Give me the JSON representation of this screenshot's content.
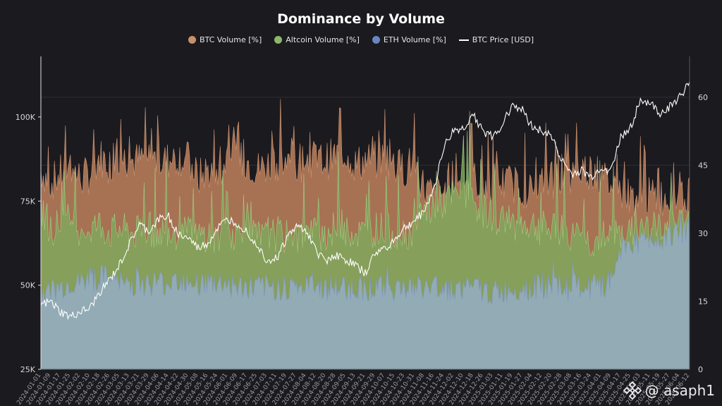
{
  "title": "Dominance by Volume",
  "legend": [
    {
      "label": "BTC Volume [%]",
      "color": "#c8906a",
      "kind": "dot"
    },
    {
      "label": "Altcoin Volume [%]",
      "color": "#8db86a",
      "kind": "dot"
    },
    {
      "label": "ETH Volume [%]",
      "color": "#6a86c0",
      "kind": "dot"
    },
    {
      "label": "BTC Price [USD]",
      "color": "#ffffff",
      "kind": "line"
    }
  ],
  "watermark": "@ asaph1",
  "chart_data": {
    "type": "area",
    "title": "Dominance by Volume",
    "x_start": "2024-01-01",
    "x_end": "2025-06-14",
    "x_tick_labels": [
      "2024-01-01",
      "2024-01-09",
      "2024-01-17",
      "2024-01-25",
      "2024-02-02",
      "2024-02-10",
      "2024-02-18",
      "2024-02-26",
      "2024-03-05",
      "2024-03-13",
      "2024-03-21",
      "2024-03-29",
      "2024-04-06",
      "2024-04-14",
      "2024-04-22",
      "2024-04-30",
      "2024-05-08",
      "2024-05-16",
      "2024-05-24",
      "2024-06-01",
      "2024-06-09",
      "2024-06-17",
      "2024-06-25",
      "2024-07-03",
      "2024-07-11",
      "2024-07-19",
      "2024-07-27",
      "2024-08-04",
      "2024-08-12",
      "2024-08-20",
      "2024-08-28",
      "2024-09-05",
      "2024-09-13",
      "2024-09-21",
      "2024-09-29",
      "2024-10-07",
      "2024-10-15",
      "2024-10-23",
      "2024-10-31",
      "2024-11-08",
      "2024-11-16",
      "2024-11-24",
      "2024-12-02",
      "2024-12-10",
      "2024-12-18",
      "2024-12-26",
      "2025-01-03",
      "2025-01-11",
      "2025-01-19",
      "2025-01-27",
      "2025-02-04",
      "2025-02-12",
      "2025-02-20",
      "2025-02-28",
      "2025-03-08",
      "2025-03-16",
      "2025-03-24",
      "2025-04-01",
      "2025-04-09",
      "2025-04-17",
      "2025-04-25",
      "2025-05-03",
      "2025-05-11",
      "2025-05-19",
      "2025-05-27",
      "2025-06-04",
      "2025-06-12"
    ],
    "left_axis": {
      "ticks": [
        25000,
        50000,
        75000,
        100000
      ],
      "tick_labels": [
        "25K",
        "50K",
        "75K",
        "100K"
      ],
      "range": [
        25000,
        118000
      ]
    },
    "right_axis": {
      "ticks": [
        0,
        15,
        30,
        45,
        60
      ],
      "tick_labels": [
        "0",
        "15",
        "30",
        "45",
        "60"
      ],
      "range": [
        0,
        69
      ]
    },
    "grid": true,
    "legend_position": "top-center",
    "series": [
      {
        "name": "BTC Volume [%]",
        "axis": "right",
        "color": "#c8906a",
        "anchors": [
          [
            0,
            44
          ],
          [
            8,
            41
          ],
          [
            16,
            43
          ],
          [
            24,
            45
          ],
          [
            32,
            42
          ],
          [
            40,
            43
          ],
          [
            48,
            47
          ],
          [
            56,
            45
          ],
          [
            64,
            47
          ],
          [
            72,
            46
          ],
          [
            80,
            46
          ],
          [
            88,
            47
          ],
          [
            96,
            46
          ],
          [
            104,
            46
          ],
          [
            112,
            47
          ],
          [
            120,
            46
          ],
          [
            128,
            42
          ],
          [
            136,
            44
          ],
          [
            144,
            42
          ],
          [
            152,
            47
          ],
          [
            160,
            46
          ],
          [
            168,
            46
          ],
          [
            176,
            44
          ],
          [
            184,
            45
          ],
          [
            192,
            46
          ],
          [
            200,
            45
          ],
          [
            208,
            44
          ],
          [
            216,
            47
          ],
          [
            224,
            46
          ],
          [
            232,
            46
          ],
          [
            240,
            47
          ],
          [
            248,
            48
          ],
          [
            256,
            45
          ],
          [
            264,
            46
          ],
          [
            272,
            46
          ],
          [
            280,
            47
          ],
          [
            288,
            45
          ],
          [
            296,
            44
          ],
          [
            304,
            46
          ],
          [
            312,
            40
          ],
          [
            320,
            38
          ],
          [
            328,
            39
          ],
          [
            336,
            40
          ],
          [
            344,
            42
          ],
          [
            352,
            42
          ],
          [
            360,
            40
          ],
          [
            368,
            41
          ],
          [
            376,
            41
          ],
          [
            384,
            41
          ],
          [
            392,
            40
          ],
          [
            400,
            39
          ],
          [
            408,
            41
          ],
          [
            416,
            42
          ],
          [
            424,
            42
          ],
          [
            432,
            42
          ],
          [
            440,
            44
          ],
          [
            448,
            44
          ],
          [
            456,
            42
          ],
          [
            464,
            41
          ],
          [
            472,
            39
          ],
          [
            480,
            38
          ],
          [
            488,
            38
          ],
          [
            496,
            38
          ],
          [
            504,
            38
          ],
          [
            512,
            38
          ],
          [
            520,
            38
          ],
          [
            528,
            38
          ]
        ]
      },
      {
        "name": "Altcoin Volume [%]",
        "axis": "right",
        "color": "#8db86a",
        "anchors": [
          [
            0,
            36
          ],
          [
            8,
            31
          ],
          [
            16,
            32
          ],
          [
            24,
            33
          ],
          [
            32,
            31
          ],
          [
            40,
            31
          ],
          [
            48,
            32
          ],
          [
            56,
            30
          ],
          [
            64,
            31
          ],
          [
            72,
            30
          ],
          [
            80,
            30
          ],
          [
            88,
            31
          ],
          [
            96,
            30
          ],
          [
            104,
            31
          ],
          [
            112,
            30
          ],
          [
            120,
            30
          ],
          [
            128,
            29
          ],
          [
            136,
            30
          ],
          [
            144,
            29
          ],
          [
            152,
            30
          ],
          [
            160,
            30
          ],
          [
            168,
            30
          ],
          [
            176,
            29
          ],
          [
            184,
            29
          ],
          [
            192,
            30
          ],
          [
            200,
            29
          ],
          [
            208,
            29
          ],
          [
            216,
            30
          ],
          [
            224,
            30
          ],
          [
            232,
            30
          ],
          [
            240,
            31
          ],
          [
            248,
            31
          ],
          [
            256,
            30
          ],
          [
            264,
            30
          ],
          [
            272,
            31
          ],
          [
            280,
            31
          ],
          [
            288,
            30
          ],
          [
            296,
            30
          ],
          [
            304,
            31
          ],
          [
            312,
            34
          ],
          [
            320,
            36
          ],
          [
            328,
            37
          ],
          [
            336,
            38
          ],
          [
            344,
            39
          ],
          [
            352,
            37
          ],
          [
            360,
            35
          ],
          [
            368,
            34
          ],
          [
            376,
            33
          ],
          [
            384,
            32
          ],
          [
            392,
            32
          ],
          [
            400,
            32
          ],
          [
            408,
            31
          ],
          [
            416,
            31
          ],
          [
            424,
            30
          ],
          [
            432,
            29
          ],
          [
            440,
            29
          ],
          [
            448,
            28
          ],
          [
            456,
            29
          ],
          [
            464,
            29
          ],
          [
            472,
            30
          ],
          [
            480,
            30
          ],
          [
            488,
            31
          ],
          [
            496,
            31
          ],
          [
            504,
            31
          ],
          [
            512,
            32
          ],
          [
            520,
            32
          ],
          [
            528,
            32
          ]
        ]
      },
      {
        "name": "ETH Volume [%]",
        "axis": "right",
        "color": "#6a86c0",
        "anchors": [
          [
            0,
            17
          ],
          [
            8,
            17
          ],
          [
            16,
            18
          ],
          [
            24,
            19
          ],
          [
            32,
            19
          ],
          [
            40,
            20
          ],
          [
            48,
            20
          ],
          [
            56,
            20
          ],
          [
            64,
            19
          ],
          [
            72,
            19
          ],
          [
            80,
            19
          ],
          [
            88,
            19
          ],
          [
            96,
            19
          ],
          [
            104,
            19
          ],
          [
            112,
            20
          ],
          [
            120,
            20
          ],
          [
            128,
            19
          ],
          [
            136,
            19
          ],
          [
            144,
            19
          ],
          [
            152,
            19
          ],
          [
            160,
            18
          ],
          [
            168,
            18
          ],
          [
            176,
            18
          ],
          [
            184,
            18
          ],
          [
            192,
            18
          ],
          [
            200,
            18
          ],
          [
            208,
            18
          ],
          [
            216,
            18
          ],
          [
            224,
            18
          ],
          [
            232,
            18
          ],
          [
            240,
            18
          ],
          [
            248,
            18
          ],
          [
            256,
            18
          ],
          [
            264,
            18
          ],
          [
            272,
            18
          ],
          [
            280,
            18
          ],
          [
            288,
            18
          ],
          [
            296,
            18
          ],
          [
            304,
            18
          ],
          [
            312,
            18
          ],
          [
            320,
            18
          ],
          [
            328,
            18
          ],
          [
            336,
            18
          ],
          [
            344,
            18
          ],
          [
            352,
            18
          ],
          [
            360,
            17
          ],
          [
            368,
            17
          ],
          [
            376,
            17
          ],
          [
            384,
            18
          ],
          [
            392,
            18
          ],
          [
            400,
            18
          ],
          [
            408,
            18
          ],
          [
            416,
            18
          ],
          [
            424,
            18
          ],
          [
            432,
            18
          ],
          [
            440,
            18
          ],
          [
            448,
            18
          ],
          [
            456,
            18
          ],
          [
            464,
            19
          ],
          [
            472,
            27
          ],
          [
            480,
            28
          ],
          [
            488,
            28
          ],
          [
            496,
            29
          ],
          [
            504,
            29
          ],
          [
            512,
            30
          ],
          [
            520,
            30
          ],
          [
            528,
            30
          ]
        ]
      },
      {
        "name": "BTC Price [USD]",
        "axis": "left",
        "color": "#ffffff",
        "anchors": [
          [
            0,
            44000
          ],
          [
            8,
            45000
          ],
          [
            16,
            42000
          ],
          [
            24,
            40500
          ],
          [
            32,
            42000
          ],
          [
            40,
            43000
          ],
          [
            48,
            48000
          ],
          [
            56,
            51500
          ],
          [
            64,
            56000
          ],
          [
            72,
            62000
          ],
          [
            80,
            68000
          ],
          [
            88,
            66000
          ],
          [
            96,
            69500
          ],
          [
            104,
            70500
          ],
          [
            112,
            65000
          ],
          [
            120,
            64000
          ],
          [
            128,
            61000
          ],
          [
            136,
            62500
          ],
          [
            144,
            67000
          ],
          [
            152,
            69500
          ],
          [
            160,
            68500
          ],
          [
            168,
            66000
          ],
          [
            176,
            62000
          ],
          [
            184,
            57500
          ],
          [
            192,
            58000
          ],
          [
            200,
            64000
          ],
          [
            208,
            67500
          ],
          [
            216,
            66500
          ],
          [
            224,
            60000
          ],
          [
            232,
            57500
          ],
          [
            240,
            59000
          ],
          [
            248,
            57500
          ],
          [
            256,
            56000
          ],
          [
            264,
            53500
          ],
          [
            272,
            59500
          ],
          [
            280,
            61000
          ],
          [
            288,
            63500
          ],
          [
            296,
            67000
          ],
          [
            304,
            69000
          ],
          [
            312,
            72000
          ],
          [
            320,
            79000
          ],
          [
            328,
            91000
          ],
          [
            336,
            96000
          ],
          [
            344,
            96500
          ],
          [
            352,
            101000
          ],
          [
            360,
            95500
          ],
          [
            368,
            94000
          ],
          [
            376,
            98000
          ],
          [
            384,
            104000
          ],
          [
            392,
            102000
          ],
          [
            400,
            97000
          ],
          [
            408,
            96000
          ],
          [
            416,
            94000
          ],
          [
            424,
            87000
          ],
          [
            432,
            83000
          ],
          [
            440,
            84000
          ],
          [
            448,
            82000
          ],
          [
            456,
            85000
          ],
          [
            464,
            84000
          ],
          [
            472,
            94000
          ],
          [
            480,
            97000
          ],
          [
            488,
            105000
          ],
          [
            496,
            104000
          ],
          [
            504,
            101000
          ],
          [
            512,
            103000
          ],
          [
            520,
            106000
          ],
          [
            528,
            110000
          ]
        ]
      }
    ]
  }
}
